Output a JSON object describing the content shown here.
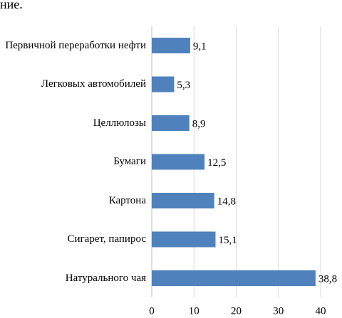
{
  "page_text": "ние.",
  "chart_data": {
    "type": "barh",
    "categories": [
      "Первичной переработки нефти",
      "Легковых автомобилей",
      "Целлюлозы",
      "Бумаги",
      "Картона",
      "Сигарет, папирос",
      "Натурального чая"
    ],
    "values": [
      9.1,
      5.3,
      8.9,
      12.5,
      14.8,
      15.1,
      38.8
    ],
    "value_labels": [
      "9,1",
      "5,3",
      "8,9",
      "12,5",
      "14,8",
      "15,1",
      "38,8"
    ],
    "color": "#4f81bd",
    "xlim": [
      0,
      40
    ],
    "xticks": [
      0,
      10,
      20,
      30,
      40
    ],
    "grid": true
  }
}
